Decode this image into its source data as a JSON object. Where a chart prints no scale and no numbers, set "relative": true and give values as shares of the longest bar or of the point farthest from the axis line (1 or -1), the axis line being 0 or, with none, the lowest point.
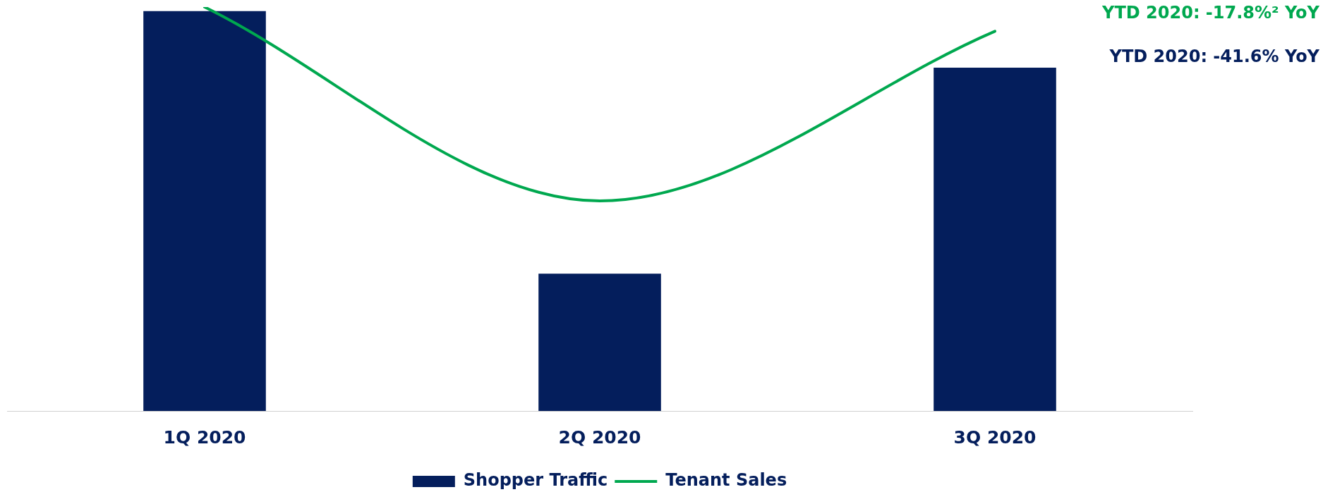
{
  "chart_data": {
    "type": "bar",
    "relative": true,
    "categories": [
      "1Q 2020",
      "2Q 2020",
      "3Q 2020"
    ],
    "series": [
      {
        "name": "Shopper Traffic",
        "color": "#041e5c",
        "values": [
          0.99,
          0.34,
          0.85
        ]
      },
      {
        "name": "Tenant Sales",
        "type": "line",
        "color": "#00a84f",
        "values": [
          1,
          0.52,
          0.94
        ]
      }
    ],
    "annotations": [
      "YTD 2020: -17.8%² YoY",
      "YTD 2020: -41.6% YoY"
    ],
    "legend": "bottom",
    "grid": false,
    "marker": "none",
    "line_style": "solid"
  }
}
